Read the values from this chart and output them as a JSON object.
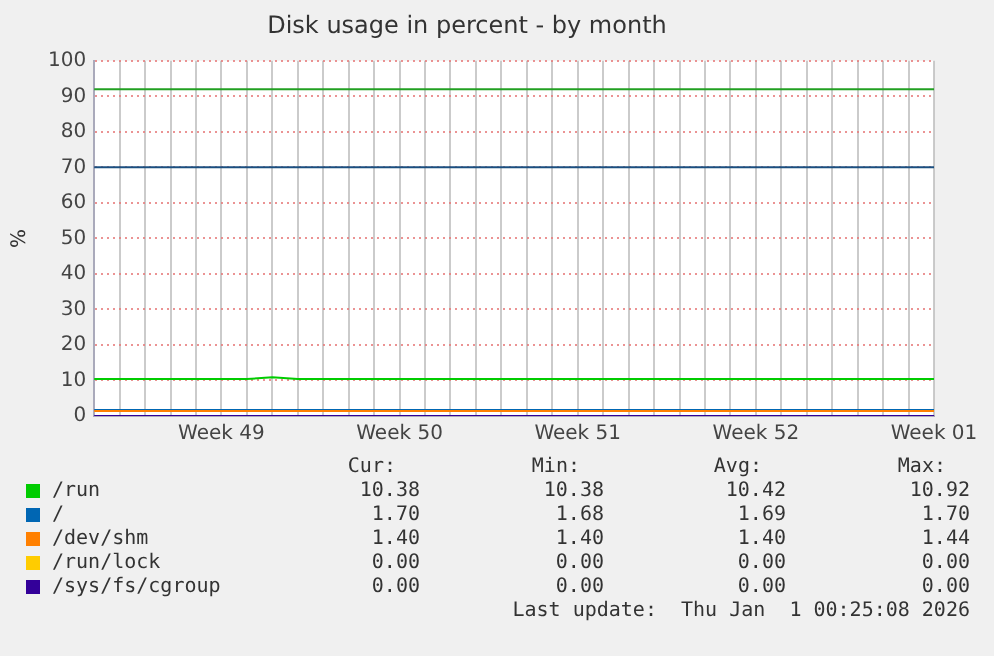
{
  "chart_data": {
    "type": "line",
    "title": "Disk usage in percent - by month",
    "ylabel": "%",
    "categories": [
      null,
      null,
      null,
      null,
      null,
      "Week 49",
      null,
      null,
      null,
      null,
      null,
      null,
      "Week 50",
      null,
      null,
      null,
      null,
      null,
      null,
      "Week 51",
      null,
      null,
      null,
      null,
      null,
      null,
      "Week 52",
      null,
      null,
      null,
      null,
      null,
      null,
      "Week 01"
    ],
    "ylim": [
      0,
      100
    ],
    "yticks": [
      0,
      10,
      20,
      30,
      40,
      50,
      60,
      70,
      80,
      90,
      100
    ],
    "grid": true,
    "legend": "bottom",
    "marker": "none",
    "line_style": "solid",
    "series": [
      {
        "name": "/run",
        "color": "#00cc00",
        "values": [
          10.4,
          10.4,
          10.4,
          10.4,
          10.4,
          10.4,
          10.4,
          10.9,
          10.4,
          10.4,
          10.4,
          10.4,
          10.4,
          10.4,
          10.4,
          10.4,
          10.4,
          10.4,
          10.4,
          10.4,
          10.4,
          10.4,
          10.4,
          10.4,
          10.4,
          10.4,
          10.4,
          10.4,
          10.4,
          10.4,
          10.4,
          10.4,
          10.4,
          10.4
        ]
      },
      {
        "name": "/",
        "color": "#0066b3",
        "values": [
          1.7,
          1.7,
          1.7,
          1.7,
          1.7,
          1.7,
          1.7,
          1.7,
          1.7,
          1.7,
          1.7,
          1.7,
          1.7,
          1.7,
          1.7,
          1.7,
          1.7,
          1.7,
          1.7,
          1.7,
          1.7,
          1.7,
          1.7,
          1.7,
          1.7,
          1.7,
          1.7,
          1.7,
          1.7,
          1.7,
          1.7,
          1.7,
          1.7,
          1.7
        ]
      },
      {
        "name": "/dev/shm",
        "color": "#ff8000",
        "values": [
          1.4,
          1.4,
          1.4,
          1.4,
          1.4,
          1.4,
          1.4,
          1.4,
          1.4,
          1.4,
          1.4,
          1.4,
          1.4,
          1.4,
          1.4,
          1.4,
          1.4,
          1.4,
          1.4,
          1.4,
          1.4,
          1.4,
          1.4,
          1.4,
          1.4,
          1.4,
          1.4,
          1.4,
          1.4,
          1.4,
          1.4,
          1.4,
          1.4,
          1.4
        ]
      },
      {
        "name": "/run/lock",
        "color": "#ffcc00",
        "values": [
          null,
          null,
          null,
          null,
          null,
          null,
          null,
          null,
          null,
          null,
          null,
          null,
          null,
          null,
          null,
          null,
          null,
          null,
          null,
          null,
          null,
          null,
          null,
          null,
          null,
          null,
          null,
          null,
          null,
          null,
          null,
          null,
          null,
          null
        ]
      },
      {
        "name": "/sys/fs/cgroup",
        "color": "#330099",
        "values": [
          0,
          0,
          0,
          0,
          0,
          0,
          0,
          0,
          0,
          0,
          0,
          0,
          0,
          0,
          0,
          0,
          0,
          0,
          0,
          0,
          0,
          0,
          0,
          0,
          0,
          0,
          0,
          0,
          0,
          0,
          0,
          0,
          0,
          0
        ]
      }
    ],
    "ref_lines": [
      {
        "axis": "y",
        "value": 92,
        "color": "#22a022"
      },
      {
        "axis": "y",
        "value": 70,
        "color": "#1a4f80"
      }
    ],
    "annotations": [
      "Cur:",
      "Min:",
      "Avg:",
      "Max:",
      "10.38",
      "10.38",
      "10.42",
      "10.92",
      "1.70",
      "1.68",
      "1.69",
      "1.70",
      "1.40",
      "1.40",
      "1.40",
      "1.44",
      "0.00",
      "0.00",
      "0.00",
      "0.00",
      "0.00",
      "0.00",
      "0.00",
      "0.00",
      "Last update:  Thu Jan  1 00:25:08 2026"
    ]
  }
}
